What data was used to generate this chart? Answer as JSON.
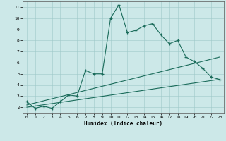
{
  "xlabel": "Humidex (Indice chaleur)",
  "ylabel": "",
  "bg_color": "#cce8e8",
  "line_color": "#1a6b5a",
  "xlim": [
    -0.5,
    23.5
  ],
  "ylim": [
    1.5,
    11.5
  ],
  "xticks": [
    0,
    1,
    2,
    3,
    4,
    5,
    6,
    7,
    8,
    9,
    10,
    11,
    12,
    13,
    14,
    15,
    16,
    17,
    18,
    19,
    20,
    21,
    22,
    23
  ],
  "yticks": [
    2,
    3,
    4,
    5,
    6,
    7,
    8,
    9,
    10,
    11
  ],
  "main_x": [
    0,
    1,
    2,
    3,
    4,
    5,
    6,
    7,
    8,
    9,
    10,
    11,
    12,
    13,
    14,
    15,
    16,
    17,
    18,
    19,
    20,
    21,
    22,
    23
  ],
  "main_y": [
    2.5,
    1.9,
    2.1,
    1.9,
    2.5,
    3.1,
    3.0,
    5.3,
    5.0,
    5.0,
    10.0,
    11.2,
    8.7,
    8.9,
    9.3,
    9.5,
    8.5,
    7.7,
    8.0,
    6.5,
    6.1,
    5.5,
    4.7,
    4.5
  ],
  "trend1_x": [
    0,
    23
  ],
  "trend1_y": [
    2.2,
    6.5
  ],
  "trend2_x": [
    0,
    23
  ],
  "trend2_y": [
    2.0,
    4.5
  ]
}
